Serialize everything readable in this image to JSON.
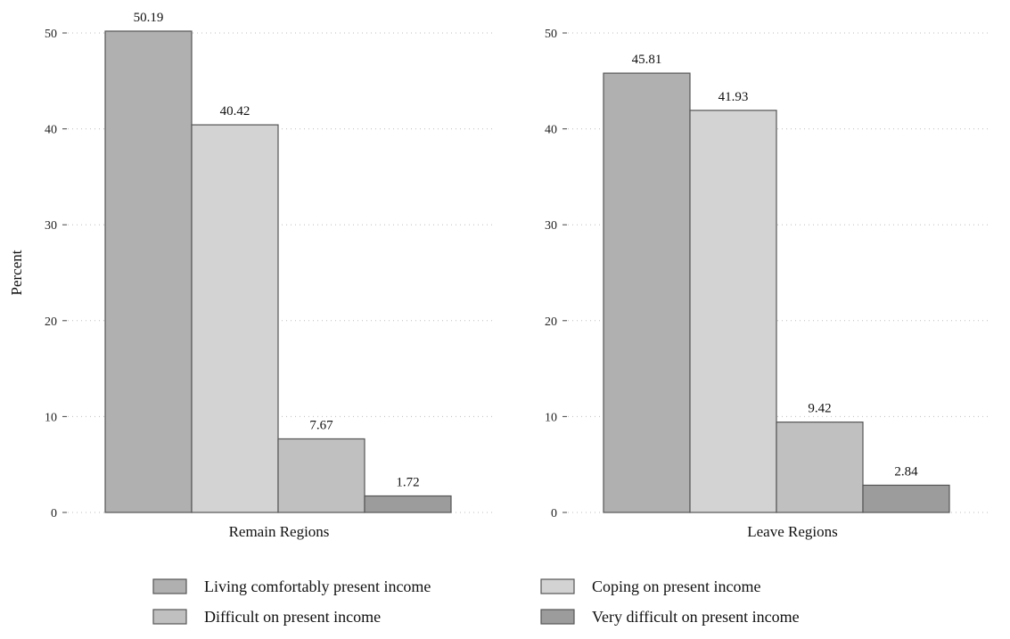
{
  "chart_data": {
    "type": "bar",
    "ylabel": "Percent",
    "ylim": [
      0,
      50
    ],
    "yticks": [
      0,
      10,
      20,
      30,
      40,
      50
    ],
    "grid": "horizontal dotted",
    "legend_placement": "bottom",
    "series": [
      {
        "name": "Living comfortably present income",
        "color": "#b0b0b0"
      },
      {
        "name": "Coping on present income",
        "color": "#d3d3d3"
      },
      {
        "name": "Difficult on present income",
        "color": "#c0c0c0"
      },
      {
        "name": "Very difficult on present income",
        "color": "#9c9c9c"
      }
    ],
    "panels": [
      {
        "label": "Remain Regions",
        "values": [
          "50.19",
          "40.42",
          "7.67",
          "1.72"
        ]
      },
      {
        "label": "Leave Regions",
        "values": [
          "45.81",
          "41.93",
          "9.42",
          "2.84"
        ]
      }
    ]
  }
}
